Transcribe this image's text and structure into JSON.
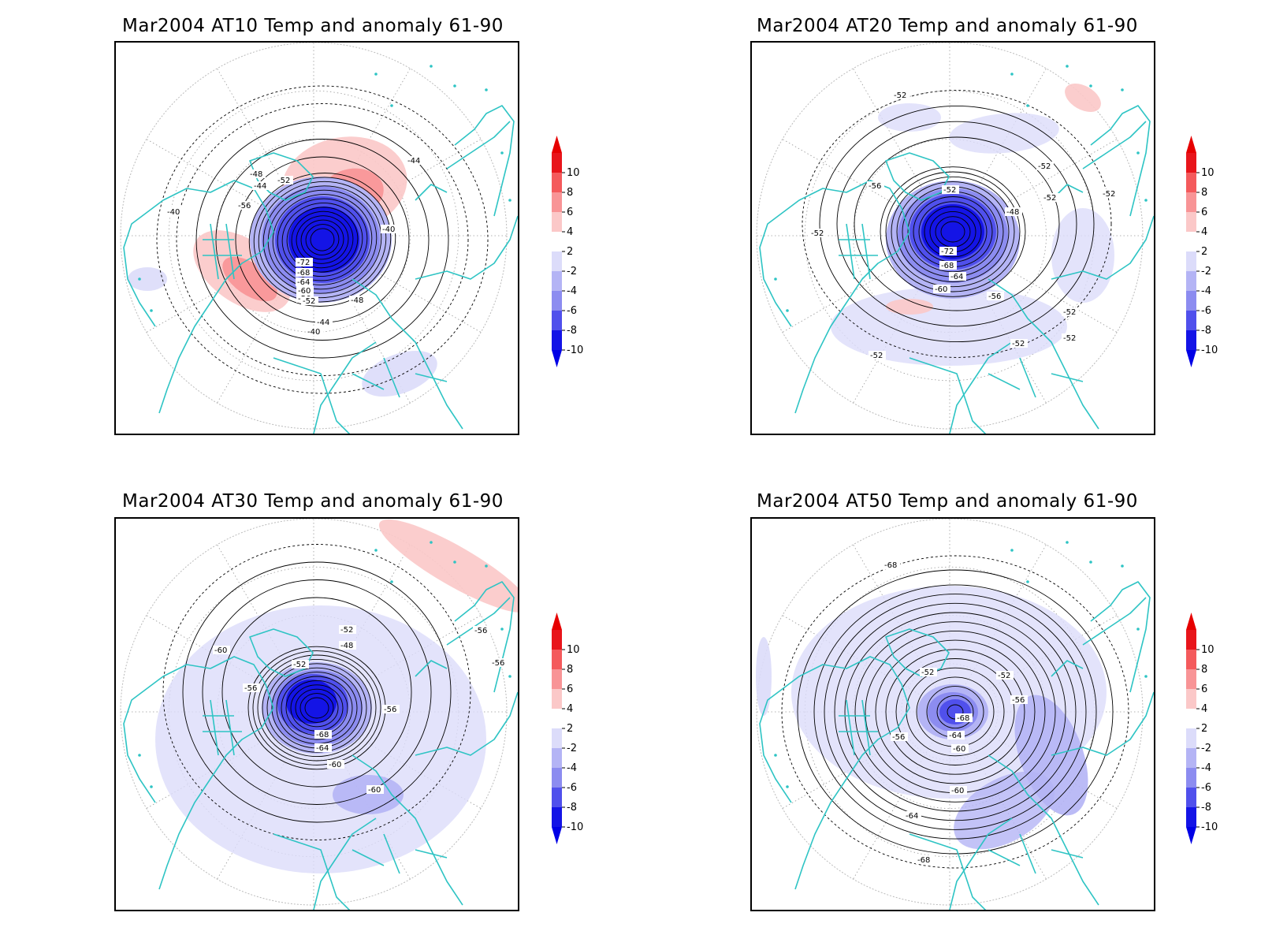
{
  "panels": [
    {
      "title": "Mar2004 AT10 Temp and anomaly 61-90",
      "level": "AT10",
      "contour_labels": [
        "-44",
        "-48",
        "-52",
        "-56",
        "-40",
        "-44",
        "-40",
        "-72",
        "-68",
        "-64",
        "-60",
        "-56",
        "-52",
        "-48",
        "-44",
        "-40"
      ]
    },
    {
      "title": "Mar2004 AT20 Temp and anomaly 61-90",
      "level": "AT20",
      "contour_labels": [
        "-52",
        "-56",
        "-52",
        "-52",
        "-48",
        "-52",
        "-52",
        "-52",
        "-72",
        "-68",
        "-64",
        "-60",
        "-56",
        "-52",
        "-52",
        "-52",
        "-52"
      ]
    },
    {
      "title": "Mar2004 AT30 Temp and anomaly 61-90",
      "level": "AT30",
      "contour_labels": [
        "-60",
        "-52",
        "-48",
        "-52",
        "-56",
        "-56",
        "-56",
        "-56",
        "-68",
        "-64",
        "-60",
        "-60"
      ]
    },
    {
      "title": "Mar2004 AT50 Temp and anomaly 61-90",
      "level": "AT50",
      "contour_labels": [
        "-68",
        "-52",
        "-52",
        "-56",
        "-56",
        "-68",
        "-64",
        "-60",
        "-60",
        "-64",
        "-68"
      ]
    }
  ],
  "colorbar": {
    "levels": [
      "10",
      "8",
      "6",
      "4",
      "2",
      "-2",
      "-4",
      "-6",
      "-8",
      "-10"
    ],
    "colors": [
      "#e8151b",
      "#f45a5c",
      "#f89496",
      "#fbc8c8",
      "#ffffff",
      "#dcdcfa",
      "#b4b4f5",
      "#8c8cf0",
      "#5050ec",
      "#1414e6"
    ],
    "arrow_top": "#e60000",
    "arrow_bottom": "#0000e6"
  },
  "legend_colors": {
    "coastline": "#2ec4c4",
    "contour": "#000000",
    "grid": "#9a9a9a"
  }
}
